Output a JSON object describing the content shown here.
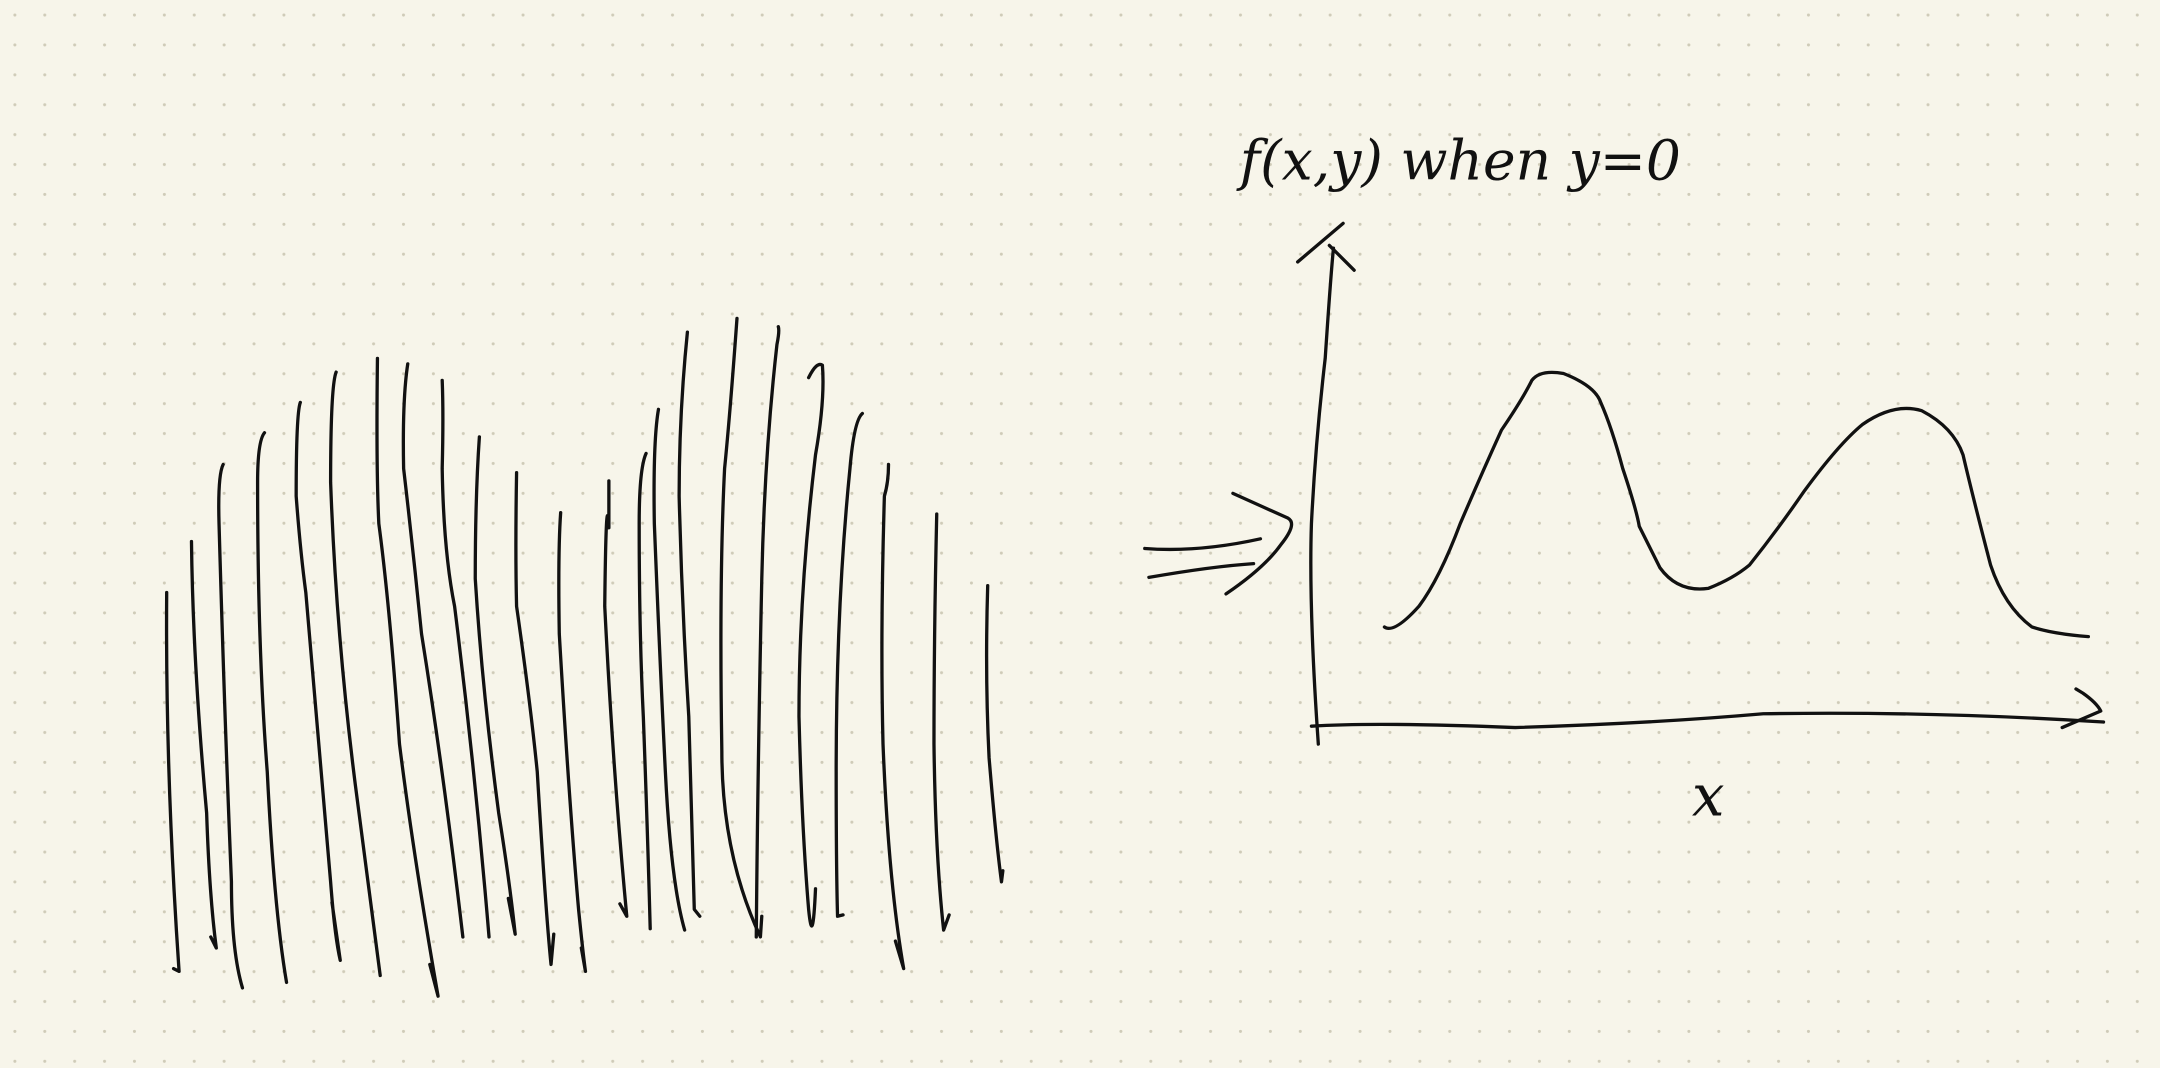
{
  "note": {
    "title": "f(x,y) when y=0",
    "x_axis_label": "x"
  }
}
